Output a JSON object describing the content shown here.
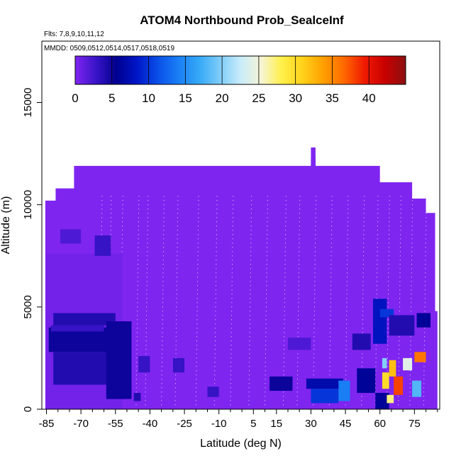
{
  "chart_data": {
    "type": "heatmap",
    "title": "ATOM4 Northbound Prob_SealceInf",
    "notes": [
      "Flts: 7,8,9,10,11,12",
      "MMDD: 0509,0512,0514,0517,0518,0519"
    ],
    "xlabel": "Latitude (deg N)",
    "ylabel": "Altitude (m)",
    "xlim": [
      -87,
      86
    ],
    "ylim": [
      0,
      18000
    ],
    "x_ticks": [
      -85,
      -70,
      -55,
      -40,
      -25,
      -10,
      5,
      15,
      30,
      45,
      60,
      75
    ],
    "x_tick_labels": [
      "-85",
      "-70",
      "-55",
      "-40",
      "-25",
      "-10",
      "5",
      "15",
      "30",
      "45",
      "60",
      "75"
    ],
    "x_minor_ticks": [
      -80,
      -75,
      -65,
      -60,
      -50,
      -45,
      -35,
      -30,
      -20,
      -15,
      -5,
      0,
      10,
      20,
      25,
      35,
      40,
      50,
      55,
      65,
      70,
      80,
      85
    ],
    "y_ticks": [
      0,
      5000,
      10000,
      15000
    ],
    "y_tick_labels": [
      "0",
      "5000",
      "10000",
      "15000"
    ],
    "colorbar": {
      "ticks": [
        0,
        5,
        10,
        15,
        20,
        25,
        30,
        35,
        40
      ],
      "tick_labels": [
        "0",
        "5",
        "10",
        "15",
        "20",
        "25",
        "30",
        "35",
        "40"
      ],
      "range": [
        0,
        45
      ],
      "stops": [
        "#7f25f0",
        "#3a14c8",
        "#00008f",
        "#0016c8",
        "#0a4fe8",
        "#1a7ff5",
        "#35a8f7",
        "#7dccf8",
        "#c8ecfb",
        "#f6f4d6",
        "#fff04a",
        "#ffd21a",
        "#ffa000",
        "#ff6a00",
        "#f01a00",
        "#c80000",
        "#8c1010"
      ]
    },
    "background_value": 0,
    "cells": [
      {
        "x": [
          -85,
          -52
        ],
        "y": [
          0,
          7600
        ],
        "value": 0.5
      },
      {
        "x": [
          -82,
          -55
        ],
        "y": [
          4100,
          4700
        ],
        "value": 4
      },
      {
        "x": [
          -84,
          -55
        ],
        "y": [
          2800,
          4000
        ],
        "value": 5
      },
      {
        "x": [
          -83,
          -60
        ],
        "y": [
          3800,
          4100
        ],
        "value": 3
      },
      {
        "x": [
          -82,
          -55
        ],
        "y": [
          1200,
          2800
        ],
        "value": 4
      },
      {
        "x": [
          -79,
          -70
        ],
        "y": [
          8100,
          8800
        ],
        "value": 2
      },
      {
        "x": [
          -64,
          -57
        ],
        "y": [
          7500,
          8500
        ],
        "value": 3
      },
      {
        "x": [
          -59,
          -48
        ],
        "y": [
          500,
          4300
        ],
        "value": 5
      },
      {
        "x": [
          -45,
          -40
        ],
        "y": [
          1800,
          2600
        ],
        "value": 3
      },
      {
        "x": [
          -47,
          -44
        ],
        "y": [
          400,
          800
        ],
        "value": 4
      },
      {
        "x": [
          -30,
          -25
        ],
        "y": [
          1800,
          2500
        ],
        "value": 3
      },
      {
        "x": [
          -15,
          -10
        ],
        "y": [
          600,
          1100
        ],
        "value": 3
      },
      {
        "x": [
          12,
          22
        ],
        "y": [
          900,
          1600
        ],
        "value": 5
      },
      {
        "x": [
          20,
          30
        ],
        "y": [
          2900,
          3500
        ],
        "value": 2
      },
      {
        "x": [
          28,
          44
        ],
        "y": [
          1000,
          1500
        ],
        "value": 7
      },
      {
        "x": [
          30,
          42
        ],
        "y": [
          300,
          1000
        ],
        "value": 10
      },
      {
        "x": [
          42,
          47
        ],
        "y": [
          400,
          1400
        ],
        "value": 14
      },
      {
        "x": [
          50,
          58
        ],
        "y": [
          800,
          2000
        ],
        "value": 6
      },
      {
        "x": [
          48,
          56
        ],
        "y": [
          2900,
          3700
        ],
        "value": 4
      },
      {
        "x": [
          57,
          63
        ],
        "y": [
          3200,
          5400
        ],
        "value": 8
      },
      {
        "x": [
          60,
          66
        ],
        "y": [
          4500,
          4900
        ],
        "value": 10
      },
      {
        "x": [
          64,
          75
        ],
        "y": [
          3600,
          4600
        ],
        "value": 4
      },
      {
        "x": [
          76,
          82
        ],
        "y": [
          4000,
          4700
        ],
        "value": 6
      },
      {
        "x": [
          58,
          64
        ],
        "y": [
          0,
          800
        ],
        "value": 6
      },
      {
        "x": [
          61,
          63
        ],
        "y": [
          2000,
          2500
        ],
        "value": 20
      },
      {
        "x": [
          61,
          64
        ],
        "y": [
          1000,
          1800
        ],
        "value": 30
      },
      {
        "x": [
          64,
          67
        ],
        "y": [
          1600,
          2400
        ],
        "value": 32
      },
      {
        "x": [
          66,
          70
        ],
        "y": [
          700,
          1600
        ],
        "value": 38
      },
      {
        "x": [
          70,
          74
        ],
        "y": [
          1900,
          2500
        ],
        "value": 24
      },
      {
        "x": [
          74,
          78
        ],
        "y": [
          600,
          1400
        ],
        "value": 18
      },
      {
        "x": [
          63,
          66
        ],
        "y": [
          300,
          700
        ],
        "value": 27
      },
      {
        "x": [
          75,
          80
        ],
        "y": [
          2300,
          2800
        ],
        "value": 36
      }
    ]
  }
}
